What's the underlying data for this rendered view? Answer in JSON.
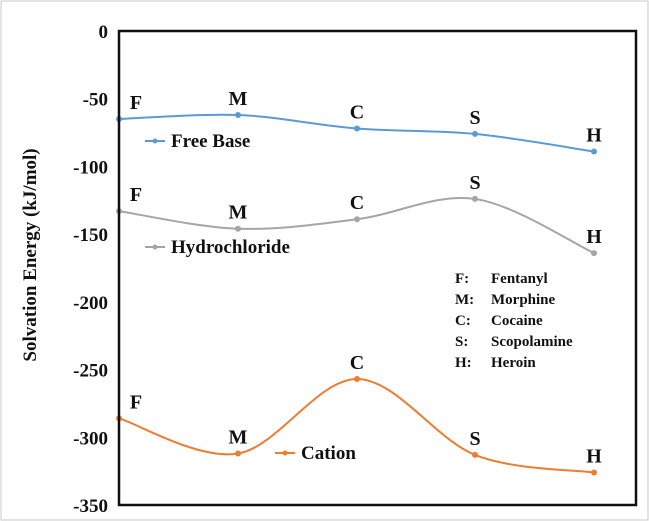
{
  "chart_data": {
    "type": "line",
    "title": "",
    "xlabel": "",
    "ylabel": "Solvation Energy (kJ/mol)",
    "ylim": [
      -350,
      0
    ],
    "yticks": [
      0,
      -50,
      -100,
      -150,
      -200,
      -250,
      -300,
      -350
    ],
    "categories": [
      "F",
      "M",
      "C",
      "S",
      "H"
    ],
    "series": [
      {
        "name": "Free Base",
        "color": "#5b9bd5",
        "point_labels": [
          "F",
          "M",
          "C",
          "S",
          "H"
        ],
        "values": [
          -65,
          -62,
          -72,
          -76,
          -89
        ]
      },
      {
        "name": "Hydrochloride",
        "color": "#a5a5a5",
        "point_labels": [
          "F",
          "M",
          "C",
          "S",
          "H"
        ],
        "values": [
          -133,
          -146,
          -139,
          -124,
          -164
        ]
      },
      {
        "name": "Cation",
        "color": "#ed7d31",
        "point_labels": [
          "F",
          "M",
          "C",
          "S",
          "H"
        ],
        "values": [
          -286,
          -312,
          -257,
          -313,
          -326
        ]
      }
    ],
    "grid": false,
    "legend_key": [
      {
        "code": "F:",
        "name": "Fentanyl"
      },
      {
        "code": "M:",
        "name": "Morphine"
      },
      {
        "code": "C:",
        "name": "Cocaine"
      },
      {
        "code": "S:",
        "name": "Scopolamine"
      },
      {
        "code": "H:",
        "name": "Heroin"
      }
    ]
  }
}
